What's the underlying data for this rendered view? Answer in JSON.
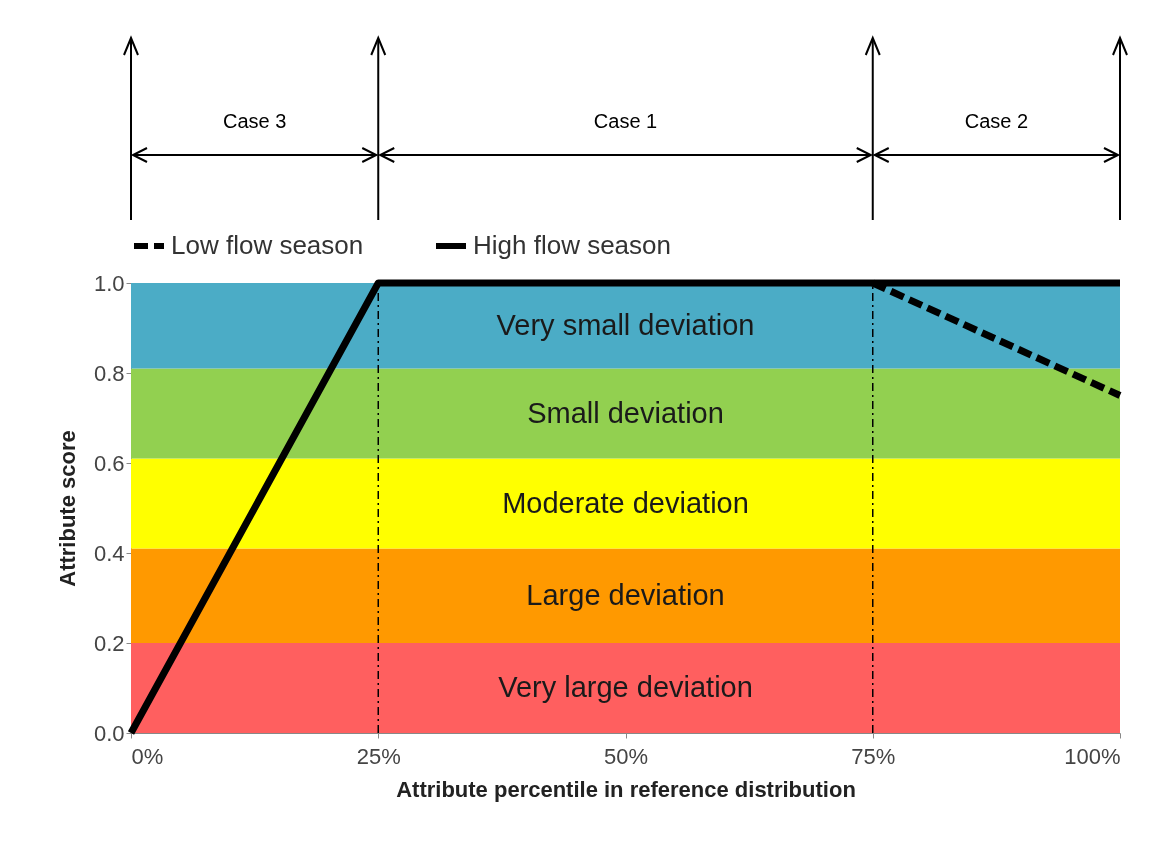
{
  "chart_data": {
    "type": "line",
    "xlabel": "Attribute percentile in reference distribution",
    "ylabel": "Attribute score",
    "xlim": [
      0,
      100
    ],
    "ylim": [
      0,
      1
    ],
    "xticks": [
      {
        "value": 0,
        "label": "0%"
      },
      {
        "value": 25,
        "label": "25%"
      },
      {
        "value": 50,
        "label": "50%"
      },
      {
        "value": 75,
        "label": "75%"
      },
      {
        "value": 100,
        "label": "100%"
      }
    ],
    "yticks": [
      {
        "value": 0,
        "label": "0.0"
      },
      {
        "value": 0.2,
        "label": "0.2"
      },
      {
        "value": 0.4,
        "label": "0.4"
      },
      {
        "value": 0.6,
        "label": "0.6"
      },
      {
        "value": 0.8,
        "label": "0.8"
      },
      {
        "value": 1,
        "label": "1.0"
      }
    ],
    "series": [
      {
        "name": "Low flow season",
        "color": "#000000",
        "line_style": "dashed",
        "x": [
          75,
          100
        ],
        "values": [
          1,
          0.75
        ]
      },
      {
        "name": "High flow season",
        "color": "#000000",
        "line_style": "solid",
        "x": [
          0,
          25,
          100
        ],
        "values": [
          0,
          1,
          1
        ]
      }
    ],
    "bands": [
      {
        "axis": "y",
        "from": 0,
        "to": 0.2,
        "label": "Very large deviation",
        "color": "#ff5f5f"
      },
      {
        "axis": "y",
        "from": 0.2,
        "to": 0.41,
        "label": "Large deviation",
        "color": "#ff9900"
      },
      {
        "axis": "y",
        "from": 0.41,
        "to": 0.61,
        "label": "Moderate deviation",
        "color": "#ffff00"
      },
      {
        "axis": "y",
        "from": 0.61,
        "to": 0.81,
        "label": "Small deviation",
        "color": "#92d050"
      },
      {
        "axis": "y",
        "from": 0.81,
        "to": 1,
        "label": "Very small deviation",
        "color": "#4bacc6"
      }
    ],
    "ref_lines": [
      {
        "axis": "x",
        "value": 25,
        "color": "#000000",
        "line_style": "dashed"
      },
      {
        "axis": "x",
        "value": 75,
        "color": "#000000",
        "line_style": "dashed"
      }
    ],
    "annotations": [
      "Case 3",
      "Case 1",
      "Case 2"
    ],
    "legend": "top",
    "grid": false
  }
}
